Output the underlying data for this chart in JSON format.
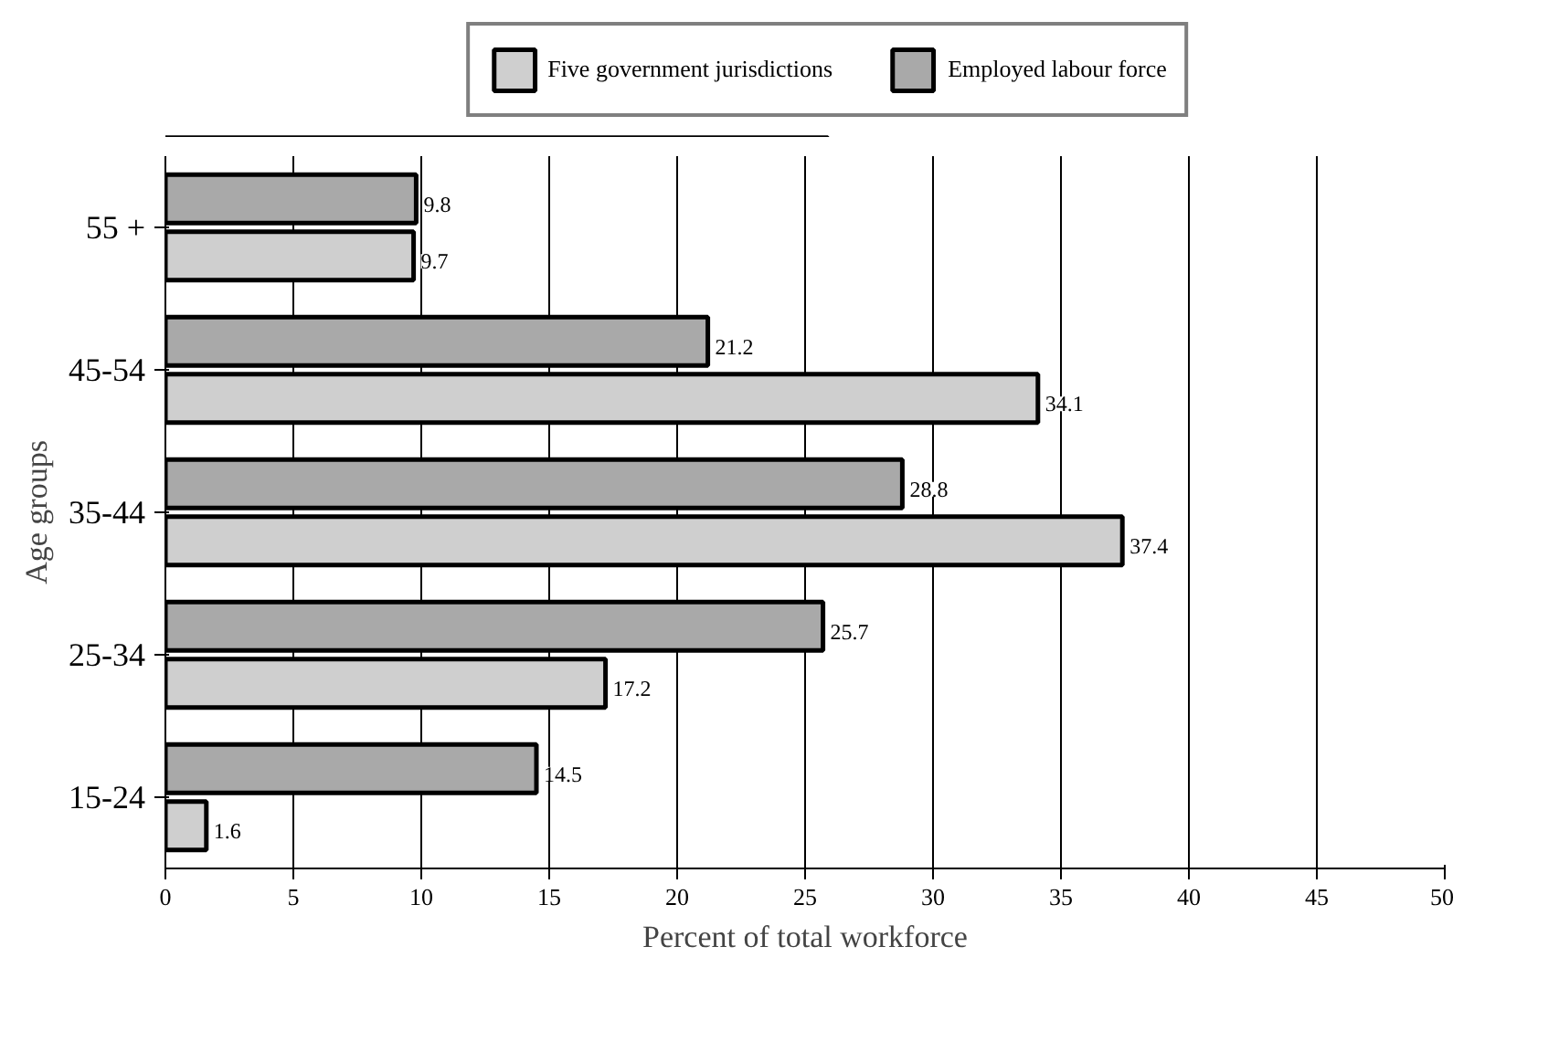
{
  "chart_data": {
    "type": "bar",
    "orientation": "horizontal",
    "xlabel": "Percent of total workforce",
    "ylabel": "Age groups",
    "categories": [
      "55 +",
      "45-54",
      "35-44",
      "25-34",
      "15-24"
    ],
    "series": [
      {
        "name": "Five government jurisdictions",
        "color": "#cfcfcf",
        "values": [
          9.7,
          34.1,
          37.4,
          17.2,
          1.6
        ]
      },
      {
        "name": "Employed labour force",
        "color": "#a9a9a9",
        "values": [
          9.8,
          21.2,
          28.8,
          25.7,
          14.5
        ]
      }
    ],
    "xlim": [
      0,
      50
    ],
    "xticks": [
      0,
      5,
      10,
      15,
      20,
      25,
      30,
      35,
      40,
      45,
      50
    ],
    "grid": "x",
    "legend": "top",
    "data_labels": true
  }
}
